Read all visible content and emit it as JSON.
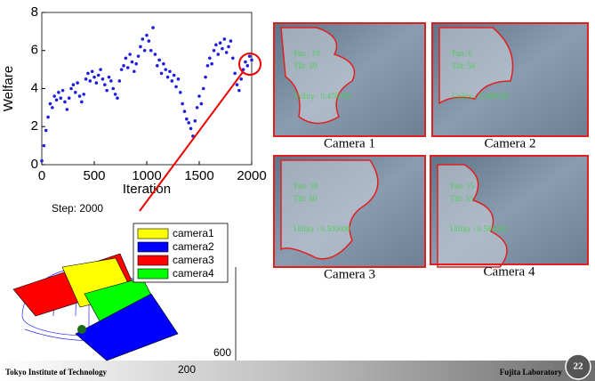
{
  "chart_data": {
    "type": "scatter",
    "xlabel": "Iteration",
    "ylabel": "Welfare",
    "color": "#1f1fe0",
    "xlim": [
      0,
      2000
    ],
    "ylim": [
      0,
      8
    ],
    "xticks": [
      0,
      500,
      1000,
      1500,
      2000
    ],
    "yticks": [
      0,
      2,
      4,
      6,
      8
    ],
    "x": [
      0,
      20,
      40,
      60,
      80,
      100,
      120,
      140,
      160,
      180,
      200,
      220,
      240,
      260,
      280,
      300,
      320,
      340,
      360,
      380,
      400,
      420,
      440,
      460,
      480,
      500,
      520,
      540,
      560,
      580,
      600,
      620,
      640,
      660,
      680,
      700,
      720,
      740,
      760,
      780,
      800,
      820,
      840,
      860,
      880,
      900,
      920,
      940,
      960,
      980,
      1000,
      1020,
      1040,
      1060,
      1080,
      1100,
      1120,
      1140,
      1160,
      1180,
      1200,
      1220,
      1240,
      1260,
      1280,
      1300,
      1320,
      1340,
      1360,
      1380,
      1400,
      1420,
      1440,
      1460,
      1480,
      1500,
      1520,
      1540,
      1560,
      1580,
      1600,
      1620,
      1640,
      1660,
      1680,
      1700,
      1720,
      1740,
      1760,
      1780,
      1800,
      1820,
      1840,
      1860,
      1880,
      1900,
      1920,
      1940,
      1960,
      1980,
      2000
    ],
    "values": [
      0.2,
      1.0,
      1.8,
      2.5,
      3.2,
      3.0,
      3.6,
      3.4,
      3.8,
      3.5,
      3.9,
      3.3,
      2.9,
      3.5,
      4.0,
      4.2,
      3.8,
      4.3,
      3.6,
      3.3,
      3.7,
      4.5,
      4.8,
      4.4,
      4.9,
      4.6,
      4.3,
      4.7,
      5.0,
      4.5,
      4.2,
      3.9,
      4.6,
      4.4,
      4.0,
      3.7,
      3.5,
      4.4,
      5.0,
      5.2,
      5.6,
      5.1,
      5.8,
      5.4,
      4.9,
      5.3,
      5.7,
      6.2,
      6.6,
      6.0,
      6.8,
      6.5,
      6.0,
      7.2,
      5.8,
      5.2,
      5.5,
      4.8,
      5.3,
      5.0,
      4.6,
      4.9,
      4.4,
      4.7,
      4.1,
      4.5,
      3.8,
      3.2,
      2.8,
      2.4,
      2.2,
      1.9,
      1.5,
      2.3,
      3.0,
      3.6,
      3.2,
      4.0,
      4.6,
      5.2,
      5.6,
      5.3,
      6.0,
      6.3,
      5.8,
      6.4,
      6.1,
      6.6,
      5.9,
      6.2,
      6.5,
      5.6,
      4.8,
      4.2,
      3.9,
      4.5,
      5.0,
      5.4,
      5.2,
      5.7,
      5.5
    ]
  },
  "cameras": [
    {
      "caption": "Camera 1",
      "overlay": [
        "Pan : 19",
        "Tilt: 59",
        "Utility : 0.470000"
      ]
    },
    {
      "caption": "Camera 2",
      "overlay": [
        "Pan: 0",
        "Tilt: 58",
        "Utility : 0.690000"
      ]
    },
    {
      "caption": "Camera 3",
      "overlay": [
        "Pan: 18",
        "Tilt: 60",
        "Utility : 0.500000"
      ]
    },
    {
      "caption": "Camera 4",
      "overlay": [
        "Pan: 15",
        "Tilt: 55",
        "Utility : 0.580000"
      ]
    }
  ],
  "diagram": {
    "step": "Step: 2000",
    "legend": [
      {
        "label": "camera1",
        "color": "#ffff00"
      },
      {
        "label": "camera2",
        "color": "#0000ff"
      },
      {
        "label": "camera3",
        "color": "#ff0000"
      },
      {
        "label": "camera4",
        "color": "#00ff00"
      }
    ],
    "axis_labels": [
      "600",
      "200"
    ]
  },
  "footer": {
    "left": "Tokyo Institute of Technology",
    "right": "Fujita Laboratory",
    "page": "22"
  }
}
